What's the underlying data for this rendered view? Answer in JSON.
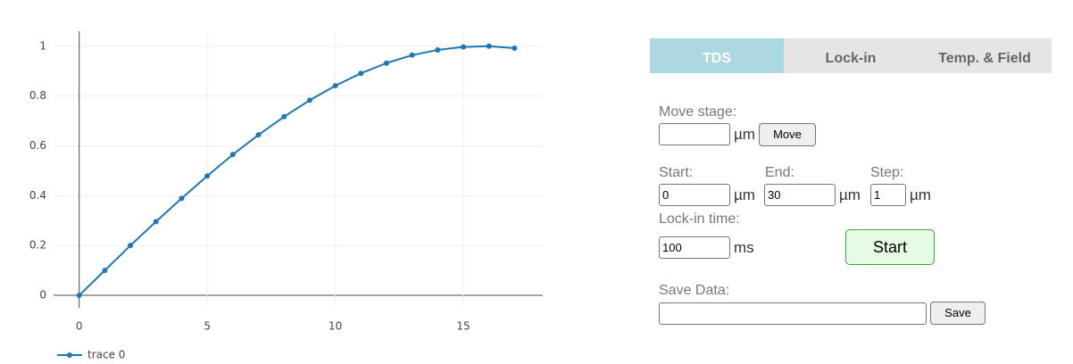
{
  "chart_data": {
    "type": "line",
    "x": [
      0,
      1,
      2,
      3,
      4,
      5,
      6,
      7,
      8,
      9,
      10,
      11,
      12,
      13,
      14,
      15,
      16,
      17
    ],
    "series": [
      {
        "name": "trace 0",
        "color": "#1f77b4",
        "values": [
          0,
          0.1,
          0.2,
          0.296,
          0.389,
          0.479,
          0.565,
          0.644,
          0.717,
          0.783,
          0.841,
          0.891,
          0.932,
          0.964,
          0.985,
          0.997,
          1.0,
          0.992
        ]
      }
    ],
    "xlim": [
      -1.0,
      18.1
    ],
    "ylim": [
      -0.05,
      1.06
    ],
    "xticks": [
      0,
      5,
      10,
      15
    ],
    "yticks": [
      0,
      0.2,
      0.4,
      0.6,
      0.8,
      1
    ],
    "grid": true,
    "legend": "bottom-left"
  },
  "panel": {
    "tabs": [
      "TDS",
      "Lock-in",
      "Temp. & Field"
    ],
    "move_stage": {
      "label": "Move stage:",
      "unit": "µm",
      "button": "Move"
    },
    "start": {
      "label": "Start:",
      "value": "0",
      "unit": "µm"
    },
    "end": {
      "label": "End:",
      "value": "30",
      "unit": "µm"
    },
    "step": {
      "label": "Step:",
      "value": "1",
      "unit": "µm"
    },
    "lock_in_time": {
      "label": "Lock-in time:",
      "value": "100",
      "unit": "ms"
    },
    "start_button": "Start",
    "save": {
      "label": "Save Data:",
      "button": "Save"
    }
  }
}
